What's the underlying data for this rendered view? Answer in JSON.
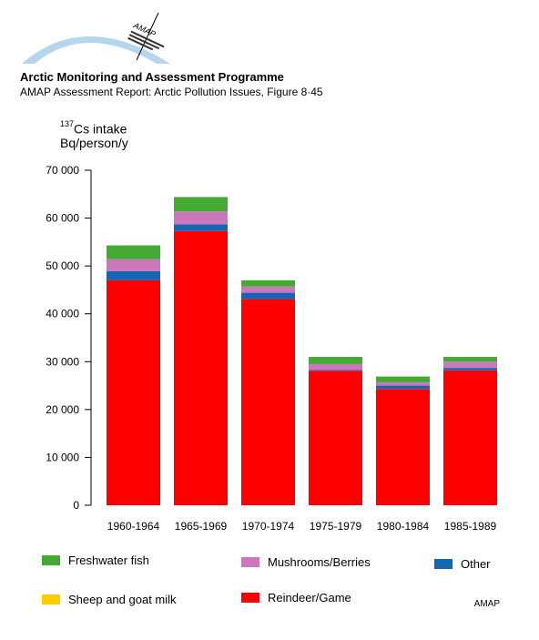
{
  "header": {
    "org": "Arctic Monitoring and Assessment Programme",
    "report": "AMAP Assessment Report: Arctic Pollution Issues, Figure 8·45",
    "logo_text": "AMAP"
  },
  "chart_data": {
    "type": "bar",
    "stacked": true,
    "ylabel_sup": "137",
    "ylabel_line1": "Cs intake",
    "ylabel_line2": "Bq/person/y",
    "xlabel": "",
    "ylim": [
      0,
      70000
    ],
    "yticks": [
      {
        "value": 0,
        "label": "0"
      },
      {
        "value": 10000,
        "label": "10 000"
      },
      {
        "value": 20000,
        "label": "20 000"
      },
      {
        "value": 30000,
        "label": "30 000"
      },
      {
        "value": 40000,
        "label": "40 000"
      },
      {
        "value": 50000,
        "label": "50 000"
      },
      {
        "value": 60000,
        "label": "60 000"
      },
      {
        "value": 70000,
        "label": "70 000"
      }
    ],
    "categories": [
      "1960-1964",
      "1965-1969",
      "1970-1974",
      "1975-1979",
      "1980-1984",
      "1985-1989"
    ],
    "series": [
      {
        "name": "Reindeer/Game",
        "color": "#ff0000",
        "values": [
          47000,
          57300,
          43100,
          28100,
          24300,
          28200
        ]
      },
      {
        "name": "Sheep and goat milk",
        "color": "#ffcc00",
        "values": [
          0,
          0,
          0,
          0,
          0,
          0
        ]
      },
      {
        "name": "Other",
        "color": "#1565b5",
        "values": [
          1900,
          1400,
          1300,
          200,
          700,
          500
        ]
      },
      {
        "name": "Mushrooms/Berries",
        "color": "#cc77bb",
        "values": [
          2500,
          2700,
          1300,
          1200,
          700,
          1300
        ]
      },
      {
        "name": "Freshwater fish",
        "color": "#44aa33",
        "values": [
          2900,
          3000,
          1300,
          1500,
          1200,
          1000
        ]
      }
    ],
    "legend_position": "bottom"
  },
  "legend": [
    {
      "label": "Freshwater fish",
      "color": "#44aa33"
    },
    {
      "label": "Mushrooms/Berries",
      "color": "#cc77bb"
    },
    {
      "label": "Other",
      "color": "#1565b5"
    },
    {
      "label": "Sheep and goat milk",
      "color": "#ffcc00"
    },
    {
      "label": "Reindeer/Game",
      "color": "#ff0000"
    }
  ],
  "footer": "AMAP"
}
